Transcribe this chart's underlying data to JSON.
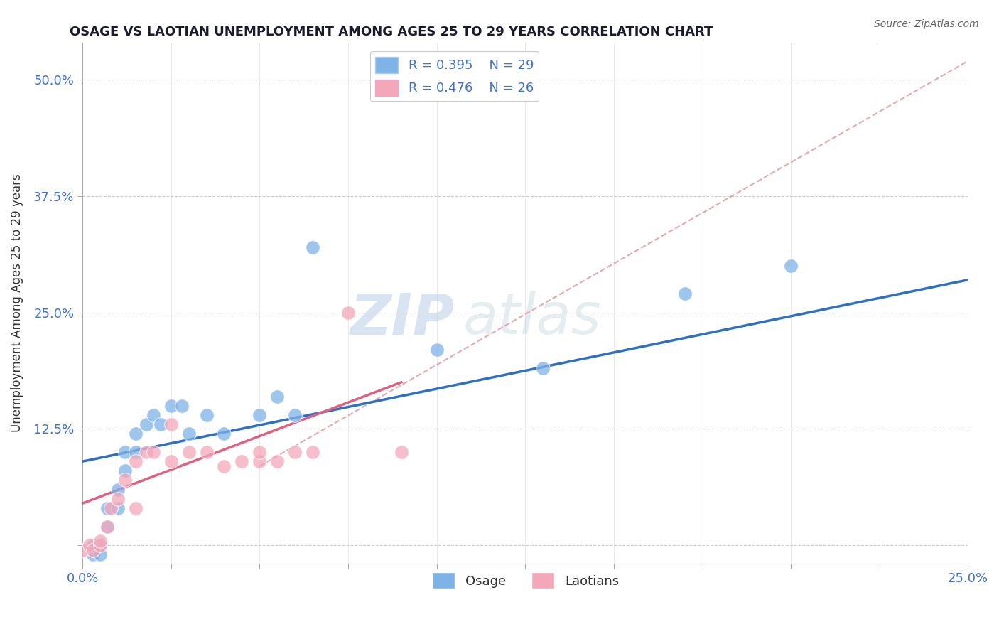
{
  "title": "OSAGE VS LAOTIAN UNEMPLOYMENT AMONG AGES 25 TO 29 YEARS CORRELATION CHART",
  "source": "Source: ZipAtlas.com",
  "xlabel": "",
  "ylabel": "Unemployment Among Ages 25 to 29 years",
  "xlim": [
    0.0,
    0.25
  ],
  "ylim": [
    -0.02,
    0.54
  ],
  "xticks": [
    0.0,
    0.025,
    0.05,
    0.075,
    0.1,
    0.125,
    0.15,
    0.175,
    0.2,
    0.225,
    0.25
  ],
  "xticklabels": [
    "0.0%",
    "",
    "",
    "",
    "",
    "",
    "",
    "",
    "",
    "",
    "25.0%"
  ],
  "ytick_positions": [
    0.0,
    0.125,
    0.25,
    0.375,
    0.5
  ],
  "yticklabels": [
    "",
    "12.5%",
    "25.0%",
    "37.5%",
    "50.0%"
  ],
  "osage_color": "#7EB3E8",
  "laotian_color": "#F4A7B9",
  "trendline_osage_color": "#3070C0",
  "trendline_laotian_color": "#E06080",
  "trendline_diagonal_color": "#E0A0A8",
  "legend_R_osage": "R = 0.395",
  "legend_N_osage": "N = 29",
  "legend_R_laotian": "R = 0.476",
  "legend_N_laotian": "N = 26",
  "watermark_zip": "ZIP",
  "watermark_atlas": "atlas",
  "osage_x": [
    0.003,
    0.003,
    0.003,
    0.005,
    0.005,
    0.007,
    0.007,
    0.01,
    0.01,
    0.012,
    0.012,
    0.015,
    0.015,
    0.018,
    0.02,
    0.022,
    0.025,
    0.028,
    0.03,
    0.035,
    0.04,
    0.05,
    0.055,
    0.06,
    0.065,
    0.1,
    0.13,
    0.17,
    0.2
  ],
  "osage_y": [
    -0.01,
    -0.005,
    0.0,
    0.0,
    -0.01,
    0.02,
    0.04,
    0.04,
    0.06,
    0.08,
    0.1,
    0.1,
    0.12,
    0.13,
    0.14,
    0.13,
    0.15,
    0.15,
    0.12,
    0.14,
    0.12,
    0.14,
    0.16,
    0.14,
    0.32,
    0.21,
    0.19,
    0.27,
    0.3
  ],
  "laotian_x": [
    0.0,
    0.002,
    0.003,
    0.005,
    0.005,
    0.007,
    0.008,
    0.01,
    0.012,
    0.015,
    0.015,
    0.018,
    0.02,
    0.025,
    0.025,
    0.03,
    0.035,
    0.04,
    0.045,
    0.05,
    0.05,
    0.055,
    0.06,
    0.065,
    0.075,
    0.09
  ],
  "laotian_y": [
    -0.005,
    0.0,
    -0.005,
    0.0,
    0.005,
    0.02,
    0.04,
    0.05,
    0.07,
    0.04,
    0.09,
    0.1,
    0.1,
    0.13,
    0.09,
    0.1,
    0.1,
    0.085,
    0.09,
    0.09,
    0.1,
    0.09,
    0.1,
    0.1,
    0.25,
    0.1
  ],
  "trendline_blue_x0": 0.0,
  "trendline_blue_y0": 0.09,
  "trendline_blue_x1": 0.25,
  "trendline_blue_y1": 0.285,
  "trendline_pink_x0": 0.0,
  "trendline_pink_y0": 0.045,
  "trendline_pink_x1": 0.09,
  "trendline_pink_y1": 0.175,
  "trendline_diag_x0": 0.05,
  "trendline_diag_y0": 0.085,
  "trendline_diag_x1": 0.25,
  "trendline_diag_y1": 0.52
}
